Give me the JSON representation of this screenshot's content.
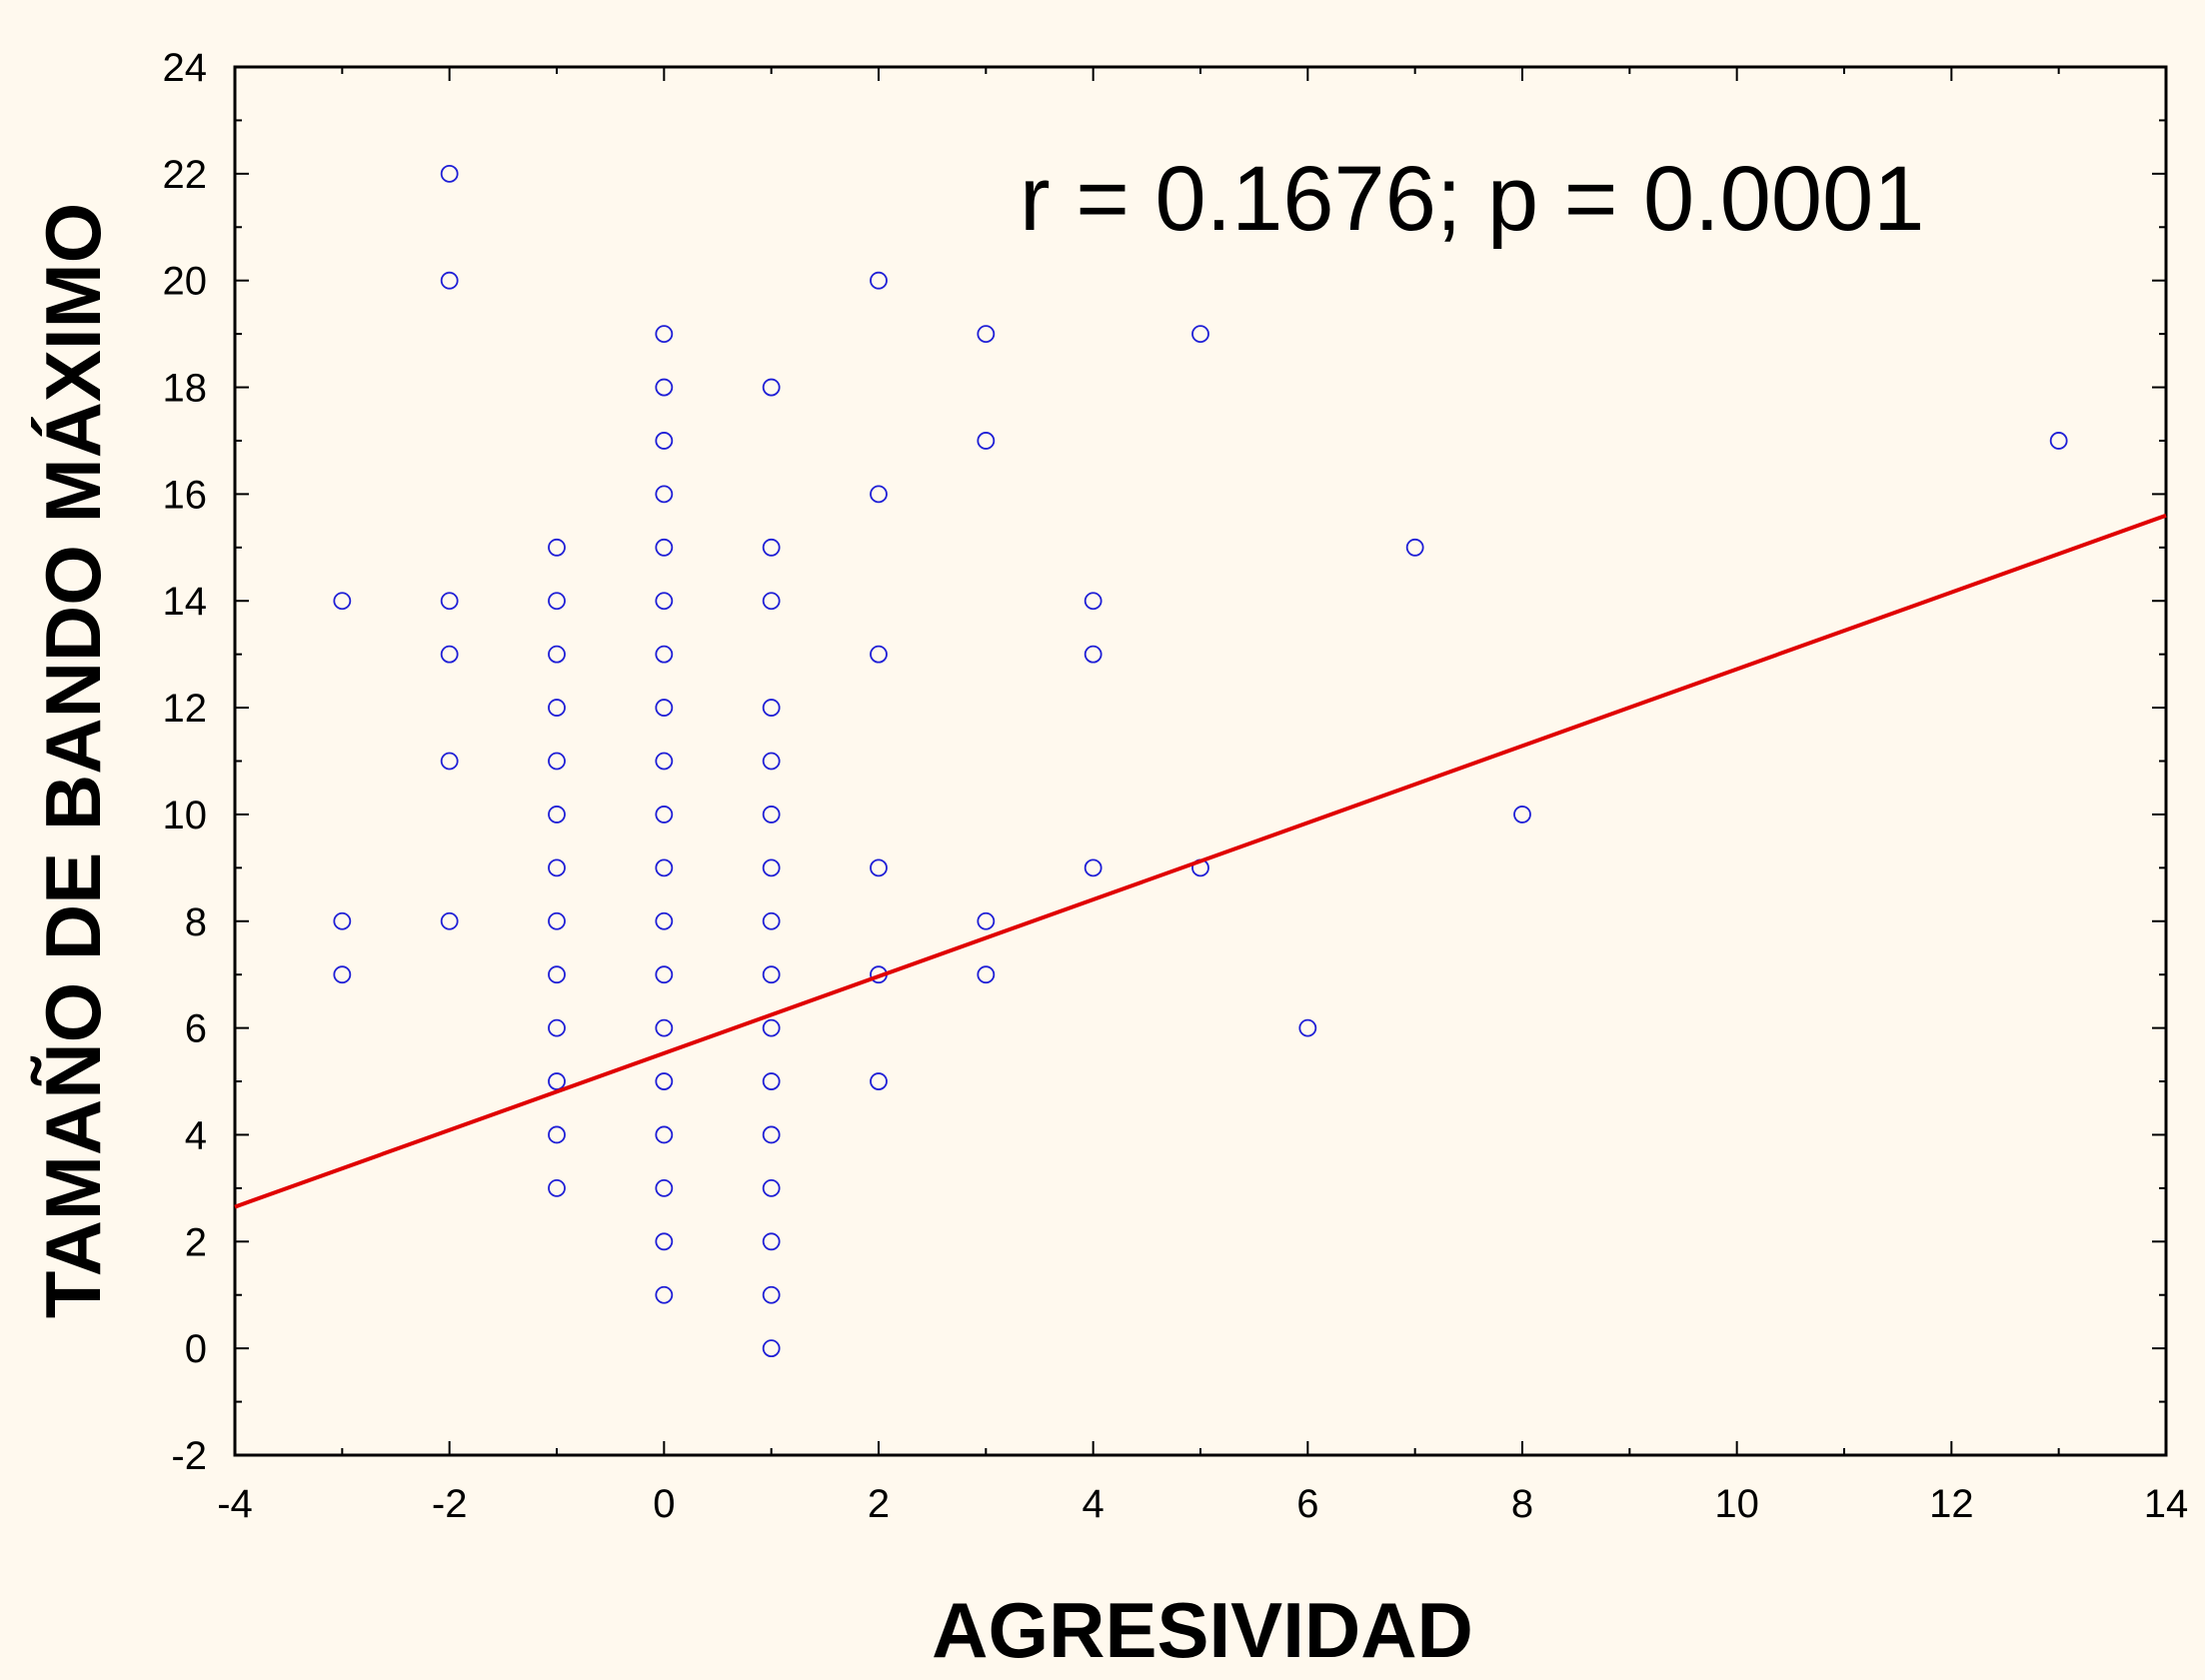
{
  "chart_data": {
    "type": "scatter",
    "xlabel": "AGRESIVIDAD",
    "ylabel": "TAMAÑO DE BANDO MÁXIMO",
    "annotation": "r = 0.1676; p = 0.0001",
    "xlim": [
      -4,
      14
    ],
    "ylim": [
      -2,
      24
    ],
    "x_ticks": [
      -4,
      -2,
      0,
      2,
      4,
      6,
      8,
      10,
      12,
      14
    ],
    "y_ticks": [
      -2,
      0,
      2,
      4,
      6,
      8,
      10,
      12,
      14,
      16,
      18,
      20,
      22,
      24
    ],
    "grid": false,
    "point_color": "#1f1fd6",
    "line_color": "#e00000",
    "background": "#fff9ee",
    "points": [
      {
        "x": -3,
        "y": 14
      },
      {
        "x": -3,
        "y": 8
      },
      {
        "x": -3,
        "y": 7
      },
      {
        "x": -2,
        "y": 22
      },
      {
        "x": -2,
        "y": 20
      },
      {
        "x": -2,
        "y": 14
      },
      {
        "x": -2,
        "y": 13
      },
      {
        "x": -2,
        "y": 11
      },
      {
        "x": -2,
        "y": 8
      },
      {
        "x": -1,
        "y": 15
      },
      {
        "x": -1,
        "y": 14
      },
      {
        "x": -1,
        "y": 13
      },
      {
        "x": -1,
        "y": 12
      },
      {
        "x": -1,
        "y": 11
      },
      {
        "x": -1,
        "y": 10
      },
      {
        "x": -1,
        "y": 9
      },
      {
        "x": -1,
        "y": 8
      },
      {
        "x": -1,
        "y": 7
      },
      {
        "x": -1,
        "y": 6
      },
      {
        "x": -1,
        "y": 5
      },
      {
        "x": -1,
        "y": 4
      },
      {
        "x": -1,
        "y": 3
      },
      {
        "x": 0,
        "y": 19
      },
      {
        "x": 0,
        "y": 18
      },
      {
        "x": 0,
        "y": 17
      },
      {
        "x": 0,
        "y": 16
      },
      {
        "x": 0,
        "y": 15
      },
      {
        "x": 0,
        "y": 14
      },
      {
        "x": 0,
        "y": 13
      },
      {
        "x": 0,
        "y": 12
      },
      {
        "x": 0,
        "y": 11
      },
      {
        "x": 0,
        "y": 10
      },
      {
        "x": 0,
        "y": 9
      },
      {
        "x": 0,
        "y": 8
      },
      {
        "x": 0,
        "y": 7
      },
      {
        "x": 0,
        "y": 6
      },
      {
        "x": 0,
        "y": 5
      },
      {
        "x": 0,
        "y": 4
      },
      {
        "x": 0,
        "y": 3
      },
      {
        "x": 0,
        "y": 2
      },
      {
        "x": 0,
        "y": 1
      },
      {
        "x": 1,
        "y": 18
      },
      {
        "x": 1,
        "y": 15
      },
      {
        "x": 1,
        "y": 14
      },
      {
        "x": 1,
        "y": 12
      },
      {
        "x": 1,
        "y": 11
      },
      {
        "x": 1,
        "y": 10
      },
      {
        "x": 1,
        "y": 9
      },
      {
        "x": 1,
        "y": 8
      },
      {
        "x": 1,
        "y": 7
      },
      {
        "x": 1,
        "y": 6
      },
      {
        "x": 1,
        "y": 5
      },
      {
        "x": 1,
        "y": 4
      },
      {
        "x": 1,
        "y": 3
      },
      {
        "x": 1,
        "y": 2
      },
      {
        "x": 1,
        "y": 1
      },
      {
        "x": 1,
        "y": 0
      },
      {
        "x": 2,
        "y": 20
      },
      {
        "x": 2,
        "y": 16
      },
      {
        "x": 2,
        "y": 13
      },
      {
        "x": 2,
        "y": 9
      },
      {
        "x": 2,
        "y": 7
      },
      {
        "x": 2,
        "y": 5
      },
      {
        "x": 3,
        "y": 19
      },
      {
        "x": 3,
        "y": 17
      },
      {
        "x": 3,
        "y": 8
      },
      {
        "x": 3,
        "y": 7
      },
      {
        "x": 4,
        "y": 14
      },
      {
        "x": 4,
        "y": 13
      },
      {
        "x": 4,
        "y": 9
      },
      {
        "x": 5,
        "y": 19
      },
      {
        "x": 5,
        "y": 9
      },
      {
        "x": 6,
        "y": 6
      },
      {
        "x": 7,
        "y": 15
      },
      {
        "x": 8,
        "y": 10
      },
      {
        "x": 13,
        "y": 17
      }
    ],
    "regression_line": {
      "x": [
        -4,
        14
      ],
      "y": [
        2.65,
        15.6
      ]
    }
  }
}
